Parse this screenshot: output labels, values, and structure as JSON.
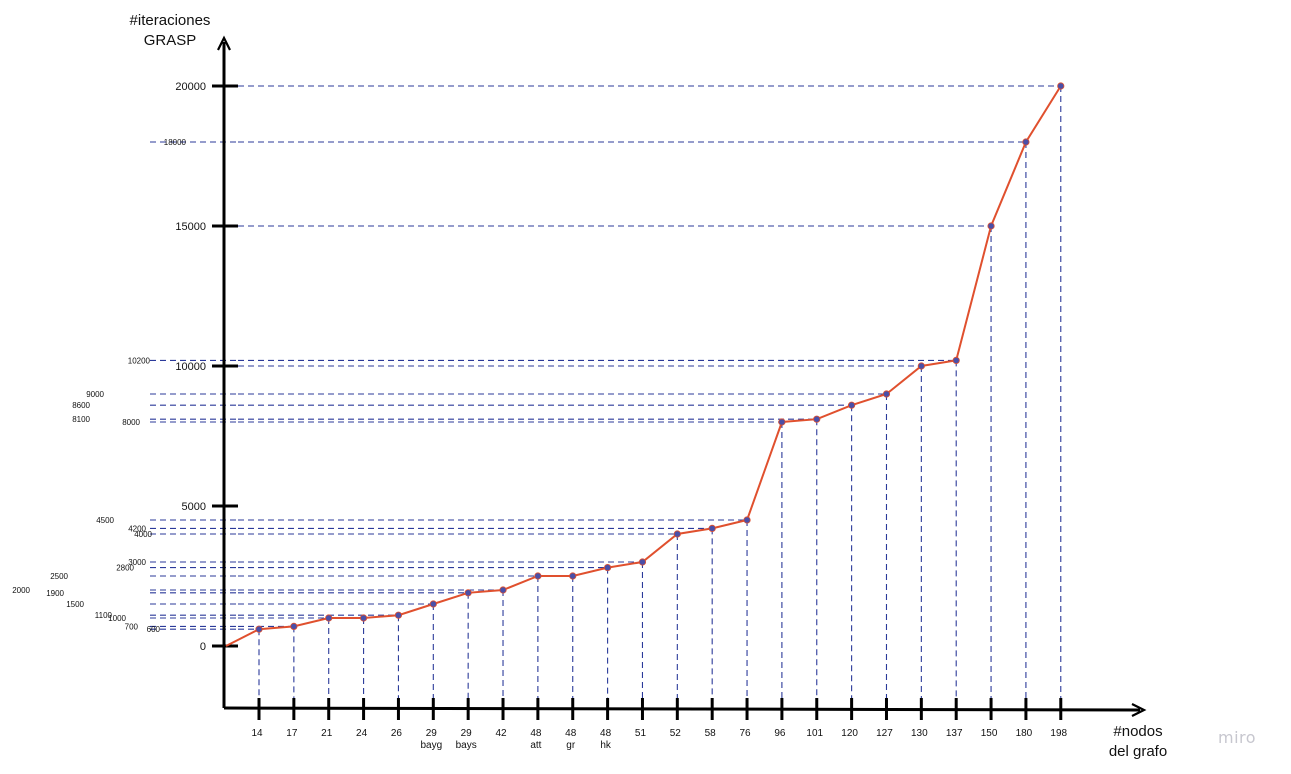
{
  "chart_data": {
    "type": "line",
    "ylabel": [
      "#iteraciones",
      "GRASP"
    ],
    "xlabel": [
      "#nodos",
      "del grafo"
    ],
    "y_major_ticks": [
      0,
      5000,
      10000,
      15000,
      20000
    ],
    "ylim": [
      0,
      20000
    ],
    "points": [
      {
        "label": [
          "14"
        ],
        "y": 600
      },
      {
        "label": [
          "17"
        ],
        "y": 700
      },
      {
        "label": [
          "21"
        ],
        "y": 1000
      },
      {
        "label": [
          "24"
        ],
        "y": 1000
      },
      {
        "label": [
          "26"
        ],
        "y": 1100
      },
      {
        "label": [
          "29",
          "bayg"
        ],
        "y": 1500
      },
      {
        "label": [
          "29",
          "bays"
        ],
        "y": 1900
      },
      {
        "label": [
          "42"
        ],
        "y": 2000
      },
      {
        "label": [
          "48",
          "att"
        ],
        "y": 2500
      },
      {
        "label": [
          "48",
          "gr"
        ],
        "y": 2500
      },
      {
        "label": [
          "48",
          "hk"
        ],
        "y": 2800
      },
      {
        "label": [
          "51"
        ],
        "y": 3000
      },
      {
        "label": [
          "52"
        ],
        "y": 4000
      },
      {
        "label": [
          "58"
        ],
        "y": 4200
      },
      {
        "label": [
          "76"
        ],
        "y": 4500
      },
      {
        "label": [
          "96"
        ],
        "y": 8000
      },
      {
        "label": [
          "101"
        ],
        "y": 8100
      },
      {
        "label": [
          "120"
        ],
        "y": 8600
      },
      {
        "label": [
          "127"
        ],
        "y": 9000
      },
      {
        "label": [
          "130"
        ],
        "y": 10000
      },
      {
        "label": [
          "137"
        ],
        "y": 10200
      },
      {
        "label": [
          "150"
        ],
        "y": 15000
      },
      {
        "label": [
          "180"
        ],
        "y": 18000
      },
      {
        "label": [
          "198"
        ],
        "y": 20000
      }
    ],
    "y_minor_labels": [
      600,
      700,
      1000,
      1100,
      1500,
      1900,
      2000,
      2500,
      2800,
      3000,
      4000,
      4200,
      4500,
      8000,
      8100,
      8600,
      9000,
      10200,
      18000
    ],
    "line_color": "#e0502e",
    "marker_color": "#4a4fa8",
    "guide_color": "#2b3a9a",
    "grid": false
  },
  "watermark": "miro"
}
